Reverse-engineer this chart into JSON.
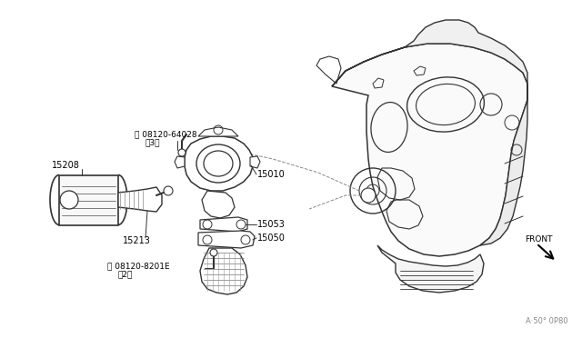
{
  "bg_color": "#ffffff",
  "line_color": "#333333",
  "text_color": "#000000",
  "fig_width": 6.4,
  "fig_height": 3.72,
  "dpi": 100,
  "watermark": "A·50° 0P80"
}
